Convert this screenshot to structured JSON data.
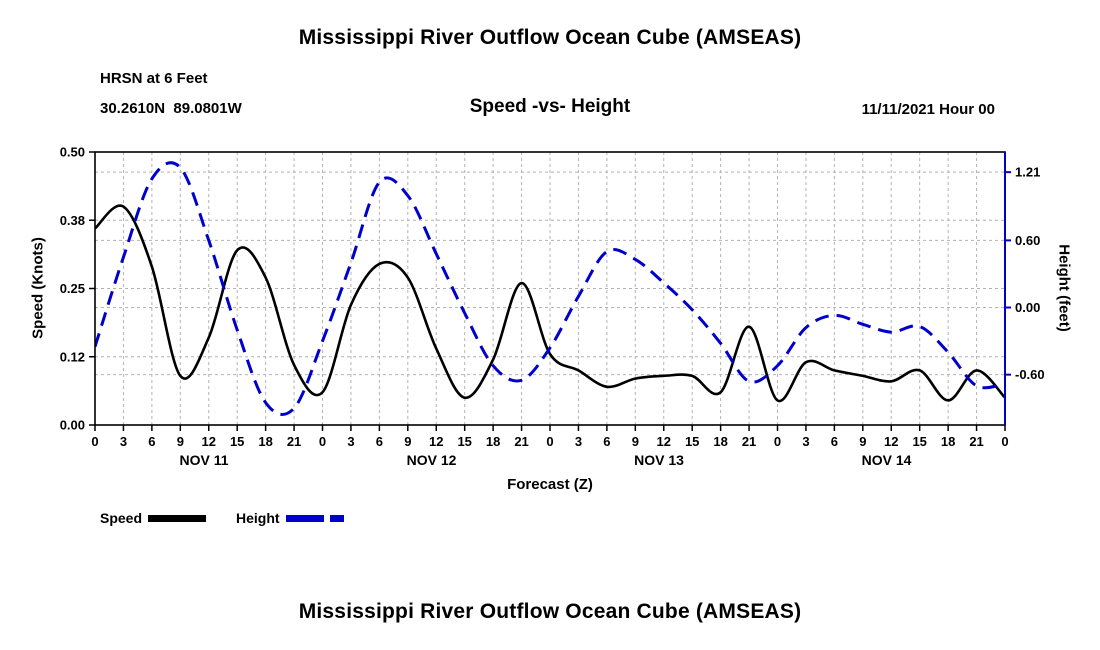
{
  "page": {
    "title": "Mississippi River Outflow Ocean Cube (AMSEAS)",
    "bottom_title": "Mississippi River Outflow Ocean Cube (AMSEAS)"
  },
  "header": {
    "station": "HRSN at 6 Feet",
    "coordinates": "30.2610N  89.0801W",
    "subtitle": "Speed -vs- Height",
    "datetime": "11/11/2021 Hour 00"
  },
  "legend": {
    "speed_label": "Speed",
    "height_label": "Height"
  },
  "colors": {
    "speed": "#000000",
    "height": "#0000cc",
    "grid": "#b3b3b3",
    "frame": "#000000"
  },
  "chart_data": {
    "type": "line",
    "title": "Speed -vs- Height",
    "xlabel": "Forecast (Z)",
    "ylabel_left": "Speed (Knots)",
    "ylabel_right": "Height (feet)",
    "xlim": [
      0,
      96
    ],
    "ylim_left": [
      0,
      0.5
    ],
    "ylim_right": [
      -1.05,
      1.39
    ],
    "grid": true,
    "legend_position": "bottom-left",
    "x_hours": [
      0,
      3,
      6,
      9,
      12,
      15,
      18,
      21,
      24,
      27,
      30,
      33,
      36,
      39,
      42,
      45,
      48,
      51,
      54,
      57,
      60,
      63,
      66,
      69,
      72,
      75,
      78,
      81,
      84,
      87,
      90,
      93,
      96
    ],
    "x_tick_labels": [
      "0",
      "3",
      "6",
      "9",
      "12",
      "15",
      "18",
      "21",
      "0",
      "3",
      "6",
      "9",
      "12",
      "15",
      "18",
      "21",
      "0",
      "3",
      "6",
      "9",
      "12",
      "15",
      "18",
      "21",
      "0",
      "3",
      "6",
      "9",
      "12",
      "15",
      "18",
      "21",
      "0"
    ],
    "day_labels": [
      {
        "label": "NOV 11",
        "hour": 11.5
      },
      {
        "label": "NOV 12",
        "hour": 35.5
      },
      {
        "label": "NOV 13",
        "hour": 59.5
      },
      {
        "label": "NOV 14",
        "hour": 83.5
      }
    ],
    "left_ticks": [
      {
        "value": 0.0,
        "label": "0.00"
      },
      {
        "value": 0.125,
        "label": "0.12"
      },
      {
        "value": 0.25,
        "label": "0.25"
      },
      {
        "value": 0.375,
        "label": "0.38"
      },
      {
        "value": 0.5,
        "label": "0.50"
      }
    ],
    "right_ticks": [
      {
        "value": -0.6,
        "label": "-0.60"
      },
      {
        "value": 0.0,
        "label": "0.00"
      },
      {
        "value": 0.6,
        "label": "0.60"
      },
      {
        "value": 1.21,
        "label": "1.21"
      }
    ],
    "series": [
      {
        "name": "Speed",
        "axis": "left",
        "color": "#000000",
        "style": "solid",
        "values": [
          0.36,
          0.4,
          0.29,
          0.09,
          0.16,
          0.32,
          0.27,
          0.11,
          0.06,
          0.22,
          0.295,
          0.27,
          0.14,
          0.05,
          0.12,
          0.26,
          0.13,
          0.1,
          0.07,
          0.085,
          0.09,
          0.09,
          0.06,
          0.18,
          0.045,
          0.115,
          0.1,
          0.09,
          0.08,
          0.1,
          0.045,
          0.1,
          0.05
        ]
      },
      {
        "name": "Height",
        "axis": "right",
        "color": "#0000cc",
        "style": "dashed",
        "values": [
          -0.35,
          0.45,
          1.15,
          1.25,
          0.6,
          -0.2,
          -0.85,
          -0.9,
          -0.3,
          0.4,
          1.12,
          1.0,
          0.48,
          -0.05,
          -0.52,
          -0.65,
          -0.36,
          0.1,
          0.5,
          0.43,
          0.22,
          -0.02,
          -0.32,
          -0.66,
          -0.52,
          -0.18,
          -0.07,
          -0.15,
          -0.22,
          -0.17,
          -0.4,
          -0.7,
          -0.68
        ]
      }
    ]
  }
}
